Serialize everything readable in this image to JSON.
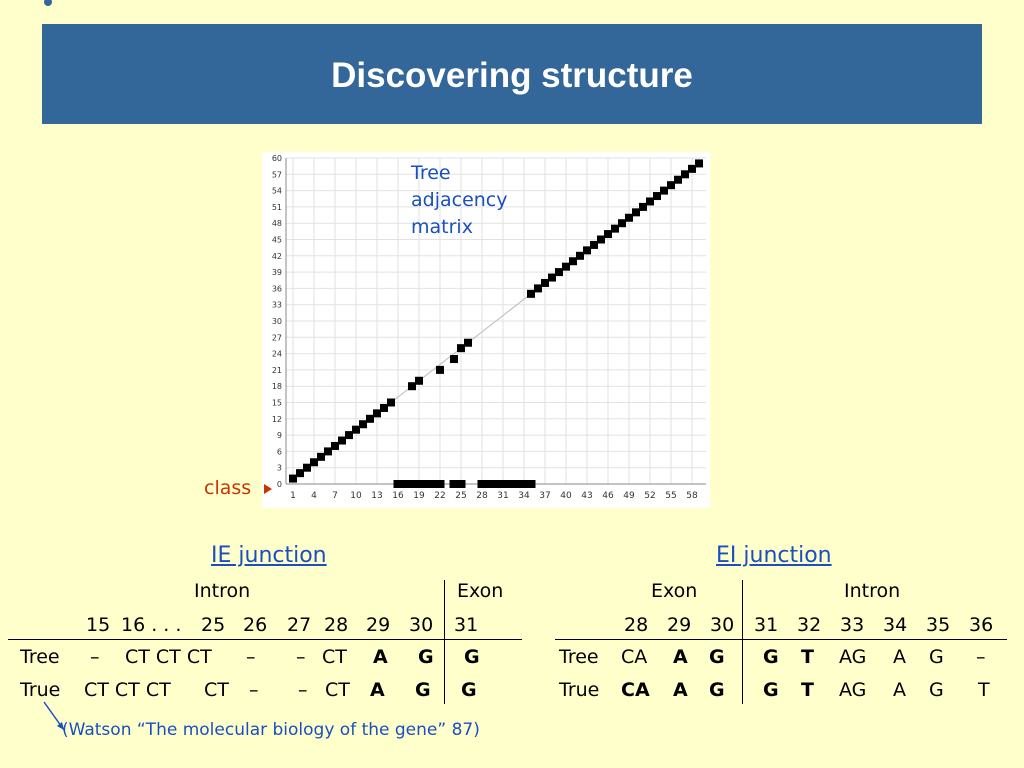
{
  "slide": {
    "title": "Discovering structure"
  },
  "annotation": {
    "line1": "Tree",
    "line2": "adjacency",
    "line3": "matrix"
  },
  "class_label": "class",
  "chart_data": {
    "type": "scatter",
    "title": "",
    "xlabel": "",
    "ylabel": "",
    "xlim": [
      0,
      60
    ],
    "ylim": [
      0,
      60
    ],
    "x_ticks": [
      "1",
      "4",
      "7",
      "10",
      "13",
      "16",
      "19",
      "22",
      "25",
      "28",
      "31",
      "34",
      "37",
      "40",
      "43",
      "46",
      "49",
      "52",
      "55",
      "58"
    ],
    "y_ticks": [
      "0",
      "3",
      "6",
      "9",
      "12",
      "15",
      "18",
      "21",
      "24",
      "27",
      "30",
      "33",
      "36",
      "39",
      "42",
      "45",
      "48",
      "51",
      "54",
      "57",
      "60"
    ],
    "grid": true,
    "diagonal": [
      [
        1,
        1
      ],
      [
        2,
        2
      ],
      [
        3,
        3
      ],
      [
        4,
        4
      ],
      [
        5,
        5
      ],
      [
        6,
        6
      ],
      [
        7,
        7
      ],
      [
        8,
        8
      ],
      [
        9,
        9
      ],
      [
        10,
        10
      ],
      [
        11,
        11
      ],
      [
        12,
        12
      ],
      [
        13,
        13
      ],
      [
        14,
        14
      ],
      [
        15,
        15
      ],
      [
        18,
        18
      ],
      [
        19,
        19
      ],
      [
        22,
        21
      ],
      [
        24,
        23
      ],
      [
        25,
        25
      ],
      [
        26,
        26
      ],
      [
        35,
        35
      ],
      [
        36,
        36
      ],
      [
        37,
        37
      ],
      [
        38,
        38
      ],
      [
        39,
        39
      ],
      [
        40,
        40
      ],
      [
        41,
        41
      ],
      [
        42,
        42
      ],
      [
        43,
        43
      ],
      [
        44,
        44
      ],
      [
        45,
        45
      ],
      [
        46,
        46
      ],
      [
        47,
        47
      ],
      [
        48,
        48
      ],
      [
        49,
        49
      ],
      [
        50,
        50
      ],
      [
        51,
        51
      ],
      [
        52,
        52
      ],
      [
        53,
        53
      ],
      [
        54,
        54
      ],
      [
        55,
        55
      ],
      [
        56,
        56
      ],
      [
        57,
        57
      ],
      [
        58,
        58
      ],
      [
        59,
        59
      ]
    ],
    "class_row": [
      16,
      17,
      18,
      19,
      20,
      21,
      22,
      24,
      25,
      28,
      29,
      30,
      31,
      32,
      33,
      34,
      35
    ]
  },
  "ie": {
    "title": "IE junction",
    "header_intron": "Intron",
    "header_exon": "Exon",
    "positions": [
      "15",
      "16 . . .",
      "25",
      "26",
      "27",
      "28",
      "29",
      "30",
      "31"
    ],
    "tree_label": "Tree",
    "true_label": "True",
    "tree": [
      "–",
      "CT CT CT",
      "–",
      "–",
      "CT",
      "A",
      "G",
      "G"
    ],
    "true": [
      "CT CT CT",
      "CT",
      "–",
      "–",
      "CT",
      "A",
      "G",
      "G"
    ]
  },
  "ei": {
    "title": "EI junction",
    "header_exon": "Exon",
    "header_intron": "Intron",
    "positions": [
      "28",
      "29",
      "30",
      "31",
      "32",
      "33",
      "34",
      "35",
      "36"
    ],
    "tree_label": "Tree",
    "true_label": "True",
    "tree": [
      "CA",
      "A",
      "G",
      "G",
      "T",
      "AG",
      "A",
      "G",
      "–"
    ],
    "true": [
      "CA",
      "A",
      "G",
      "G",
      "T",
      "AG",
      "A",
      "G",
      "T"
    ]
  },
  "reference": "(Watson “The molecular biology of the gene” 87)"
}
